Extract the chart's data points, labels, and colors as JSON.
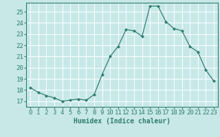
{
  "x": [
    0,
    1,
    2,
    3,
    4,
    5,
    6,
    7,
    8,
    9,
    10,
    11,
    12,
    13,
    14,
    15,
    16,
    17,
    18,
    19,
    20,
    21,
    22,
    23
  ],
  "y": [
    18.2,
    17.8,
    17.5,
    17.3,
    17.0,
    17.1,
    17.2,
    17.1,
    17.6,
    19.4,
    21.0,
    21.9,
    23.4,
    23.3,
    22.8,
    25.5,
    25.5,
    24.1,
    23.5,
    23.3,
    21.9,
    21.4,
    19.8,
    18.8
  ],
  "line_color": "#2e7d6e",
  "marker": "D",
  "marker_size": 2,
  "bg_color": "#c8e8e8",
  "grid_color": "#ffffff",
  "xlabel": "Humidex (Indice chaleur)",
  "ylabel": "",
  "xlim": [
    -0.5,
    23.5
  ],
  "ylim": [
    16.5,
    25.8
  ],
  "yticks": [
    17,
    18,
    19,
    20,
    21,
    22,
    23,
    24,
    25
  ],
  "xticks": [
    0,
    1,
    2,
    3,
    4,
    5,
    6,
    7,
    8,
    9,
    10,
    11,
    12,
    13,
    14,
    15,
    16,
    17,
    18,
    19,
    20,
    21,
    22,
    23
  ],
  "label_fontsize": 7,
  "tick_fontsize": 6.5
}
